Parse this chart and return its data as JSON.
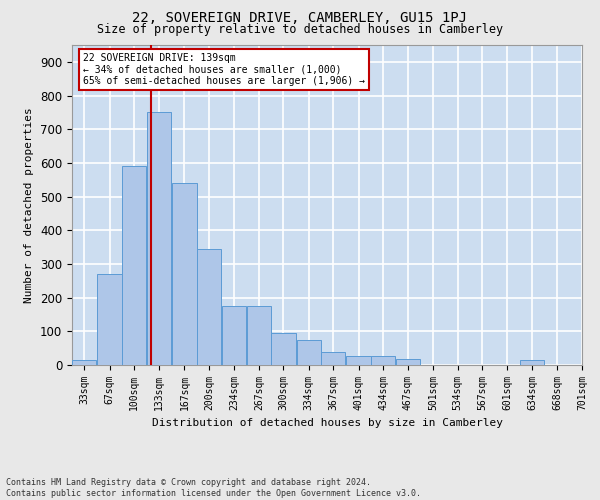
{
  "title": "22, SOVEREIGN DRIVE, CAMBERLEY, GU15 1PJ",
  "subtitle": "Size of property relative to detached houses in Camberley",
  "xlabel": "Distribution of detached houses by size in Camberley",
  "ylabel": "Number of detached properties",
  "footnote": "Contains HM Land Registry data © Crown copyright and database right 2024.\nContains public sector information licensed under the Open Government Licence v3.0.",
  "bar_color": "#aec6e8",
  "bar_edge_color": "#5b9bd5",
  "axes_bg_color": "#ccddf0",
  "fig_bg_color": "#e8e8e8",
  "grid_color": "#ffffff",
  "property_line_color": "#c00000",
  "annotation_box_edge_color": "#c00000",
  "annotation_text": "22 SOVEREIGN DRIVE: 139sqm\n← 34% of detached houses are smaller (1,000)\n65% of semi-detached houses are larger (1,906) →",
  "property_size_sqm": 139,
  "bin_centers": [
    49.5,
    83.5,
    116.5,
    150.0,
    184.0,
    217.0,
    251.0,
    284.0,
    317.0,
    351.0,
    384.0,
    418.0,
    451.0,
    484.0,
    518.0,
    551.0,
    584.0,
    617.5,
    651.0,
    684.5
  ],
  "bin_labels": [
    "33sqm",
    "67sqm",
    "100sqm",
    "133sqm",
    "167sqm",
    "200sqm",
    "234sqm",
    "267sqm",
    "300sqm",
    "334sqm",
    "367sqm",
    "401sqm",
    "434sqm",
    "467sqm",
    "501sqm",
    "534sqm",
    "567sqm",
    "601sqm",
    "634sqm",
    "668sqm",
    "701sqm"
  ],
  "values": [
    14,
    270,
    590,
    750,
    540,
    345,
    175,
    175,
    95,
    75,
    40,
    26,
    26,
    18,
    0,
    0,
    0,
    0,
    14,
    0
  ],
  "bin_width": 33,
  "xlim": [
    33,
    701
  ],
  "ylim": [
    0,
    950
  ],
  "yticks": [
    0,
    100,
    200,
    300,
    400,
    500,
    600,
    700,
    800,
    900
  ],
  "xtick_positions": [
    49.5,
    83.5,
    116.5,
    150.0,
    184.0,
    217.0,
    251.0,
    284.0,
    317.0,
    351.0,
    384.0,
    418.0,
    451.0,
    484.0,
    518.0,
    551.0,
    584.0,
    617.5,
    651.0,
    684.5,
    718.0
  ]
}
